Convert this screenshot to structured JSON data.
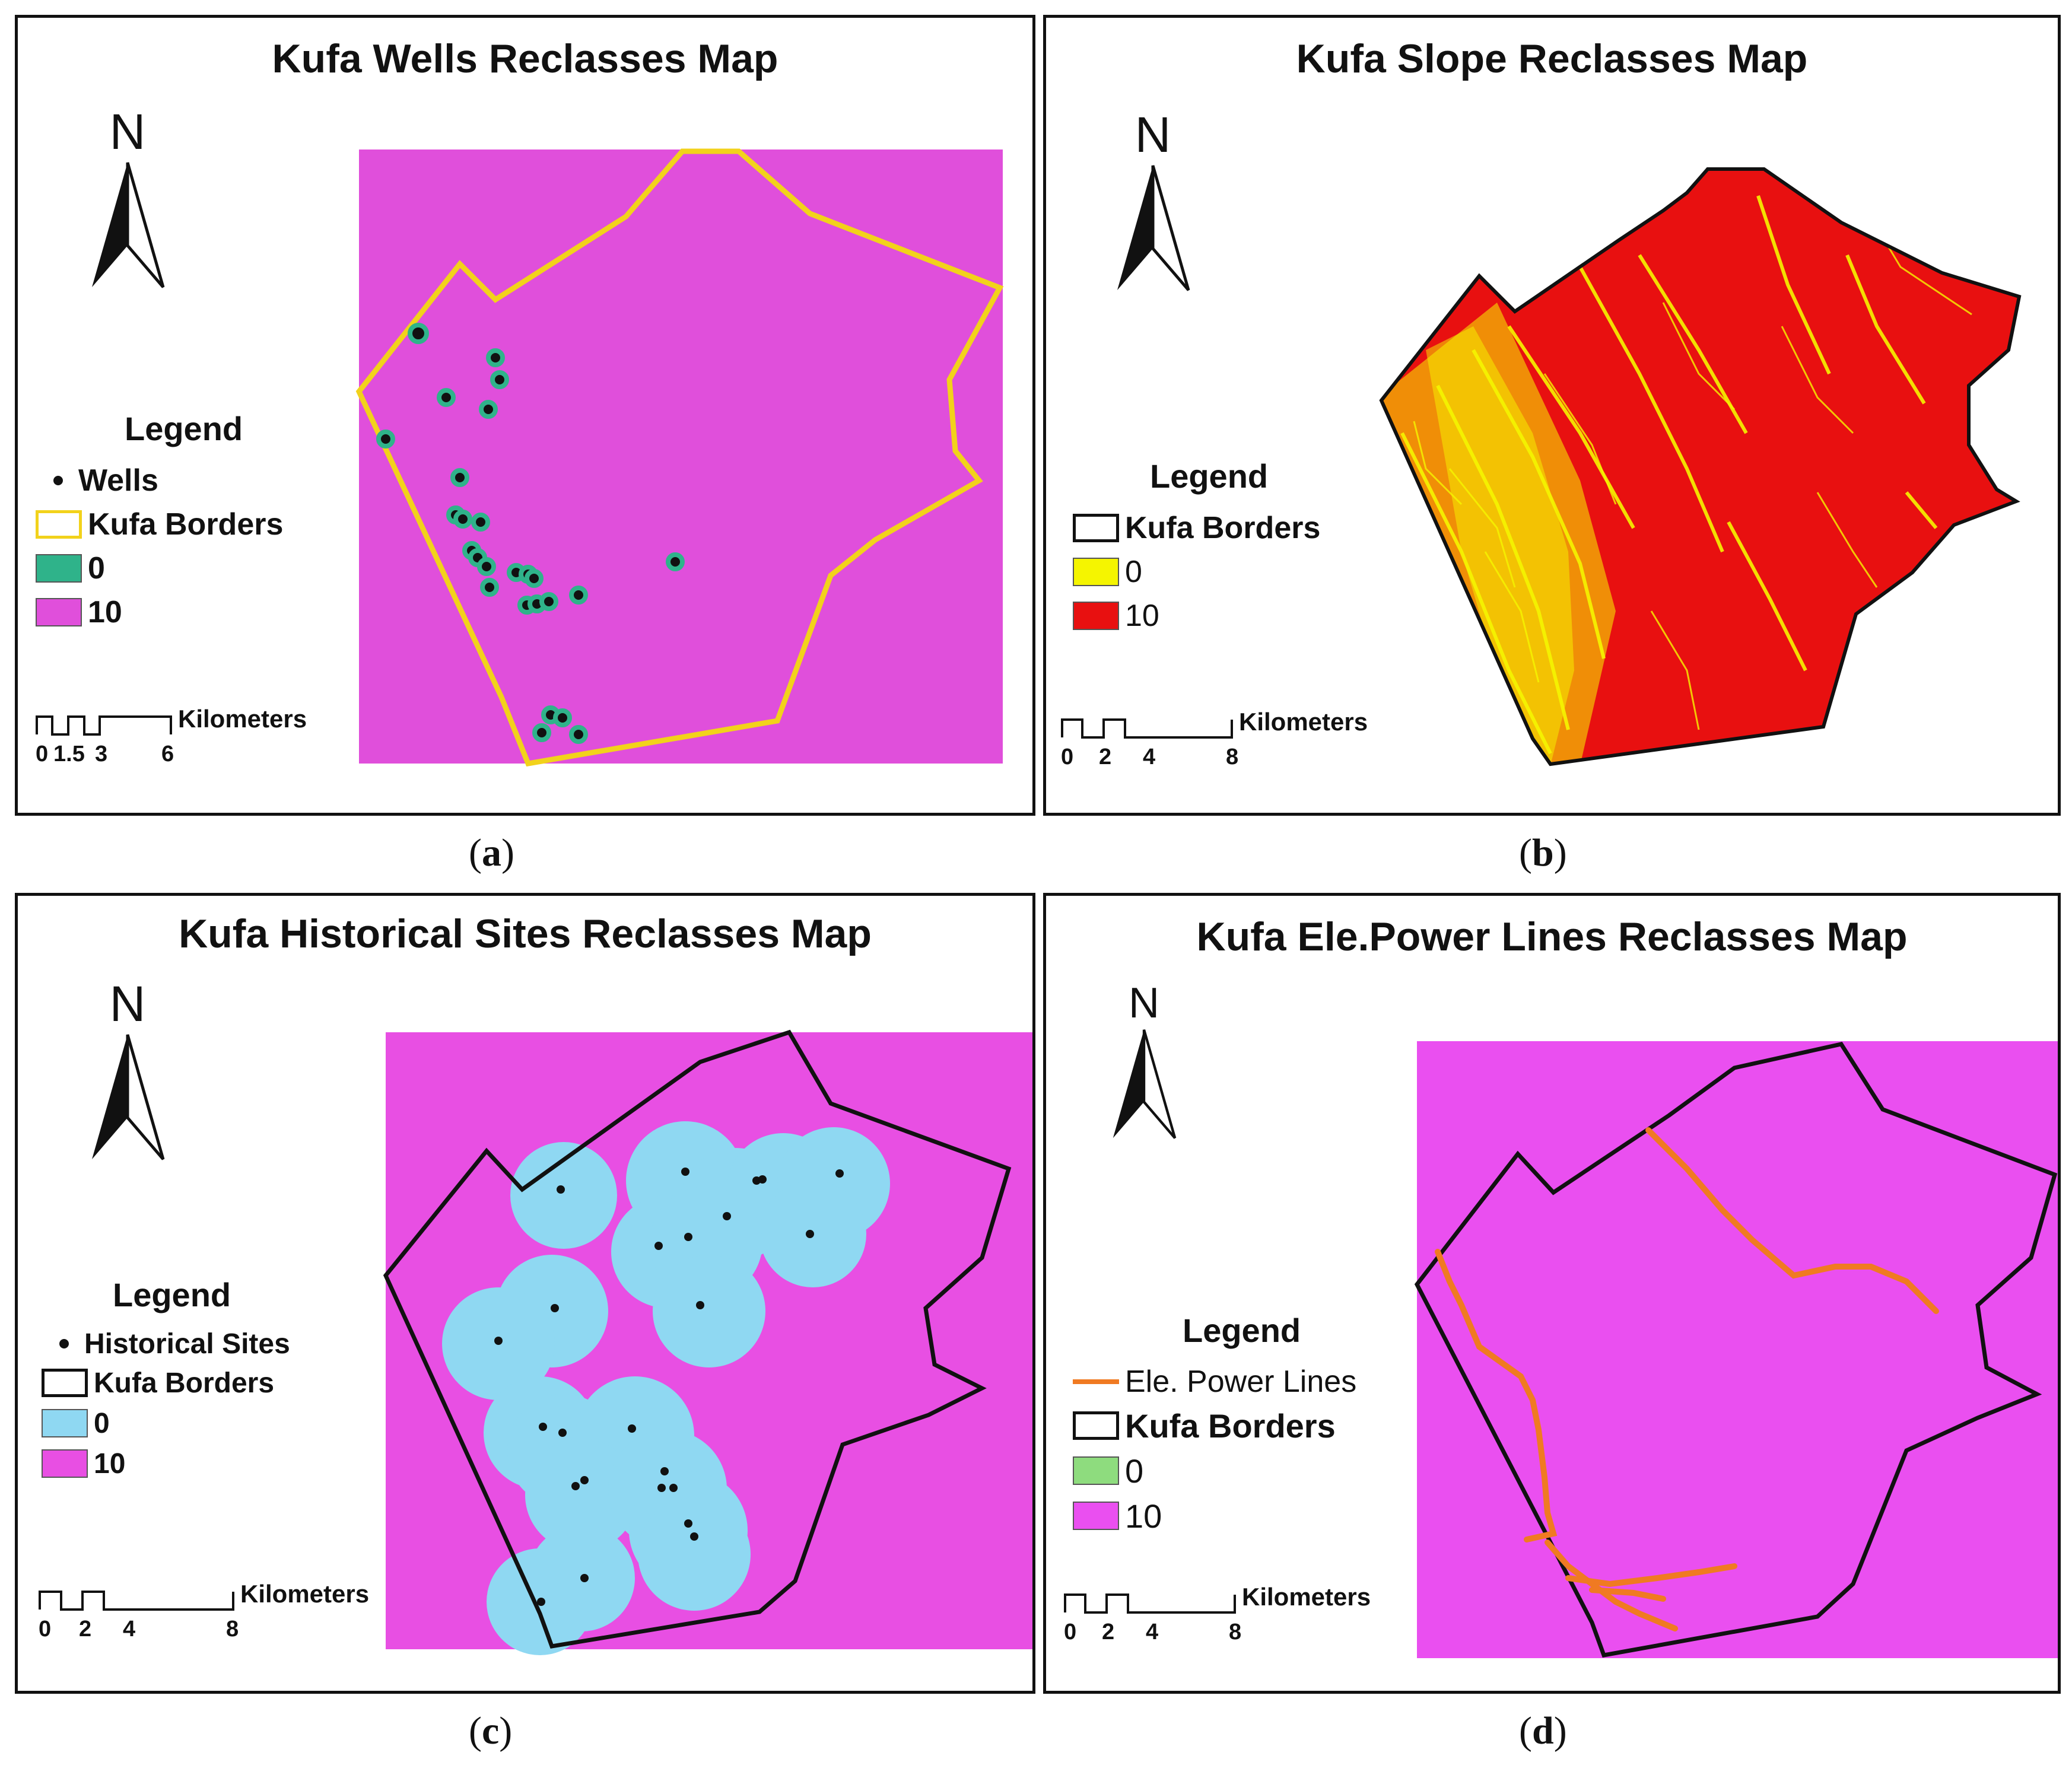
{
  "panels": [
    {
      "title": "Kufa Wells Reclasses Map",
      "caption_letter": "a",
      "legend": {
        "title": "Legend",
        "items": [
          {
            "type": "point",
            "label": "Wells"
          },
          {
            "type": "outline",
            "label": "Kufa Borders",
            "color": "#f2d21b"
          },
          {
            "type": "fill",
            "label": "0",
            "color": "#2fb38a"
          },
          {
            "type": "fill",
            "label": "10",
            "color": "#e04fdb"
          }
        ]
      },
      "scale": {
        "unit": "Kilometers",
        "ticks": [
          "0",
          "1.5",
          "3",
          "6"
        ]
      },
      "north": "N"
    },
    {
      "title": "Kufa Slope Reclasses Map",
      "caption_letter": "b",
      "legend": {
        "title": "Legend",
        "items": [
          {
            "type": "outline",
            "label": "Kufa Borders",
            "color": "#111111"
          },
          {
            "type": "fill",
            "label": "0",
            "color": "#f5f500"
          },
          {
            "type": "fill",
            "label": "10",
            "color": "#e81010"
          }
        ]
      },
      "scale": {
        "unit": "Kilometers",
        "ticks": [
          "0",
          "2",
          "4",
          "8"
        ]
      },
      "north": "N"
    },
    {
      "title": "Kufa Historical Sites Reclasses Map",
      "caption_letter": "c",
      "legend": {
        "title": "Legend",
        "items": [
          {
            "type": "point",
            "label": "Historical Sites"
          },
          {
            "type": "outline",
            "label": "Kufa Borders",
            "color": "#111111"
          },
          {
            "type": "fill",
            "label": "0",
            "color": "#8fd8f2"
          },
          {
            "type": "fill",
            "label": "10",
            "color": "#e84fe3"
          }
        ]
      },
      "scale": {
        "unit": "Kilometers",
        "ticks": [
          "0",
          "2",
          "4",
          "8"
        ]
      },
      "north": "N"
    },
    {
      "title": "Kufa Ele.Power Lines Reclasses Map",
      "caption_letter": "d",
      "legend": {
        "title": "Legend",
        "items": [
          {
            "type": "line",
            "label": "Ele. Power Lines",
            "color": "#f07a22"
          },
          {
            "type": "outline",
            "label": "Kufa Borders",
            "color": "#111111"
          },
          {
            "type": "fill",
            "label": "0",
            "color": "#8edc7e"
          },
          {
            "type": "fill",
            "label": "10",
            "color": "#ea4ff0"
          }
        ]
      },
      "scale": {
        "unit": "Kilometers",
        "ticks": [
          "0",
          "2",
          "4",
          "8"
        ]
      },
      "north": "N"
    }
  ],
  "colors": {
    "magenta_a": "#e04fdb",
    "magenta_c": "#e84fe3",
    "magenta_d": "#ea4ff0",
    "slope_red": "#e81010",
    "slope_yellow": "#f5f500",
    "buffer_blue": "#8fd8f2",
    "well_buffer": "#2fb38a",
    "border_yellow": "#f2d21b",
    "power_line": "#f07a22"
  }
}
